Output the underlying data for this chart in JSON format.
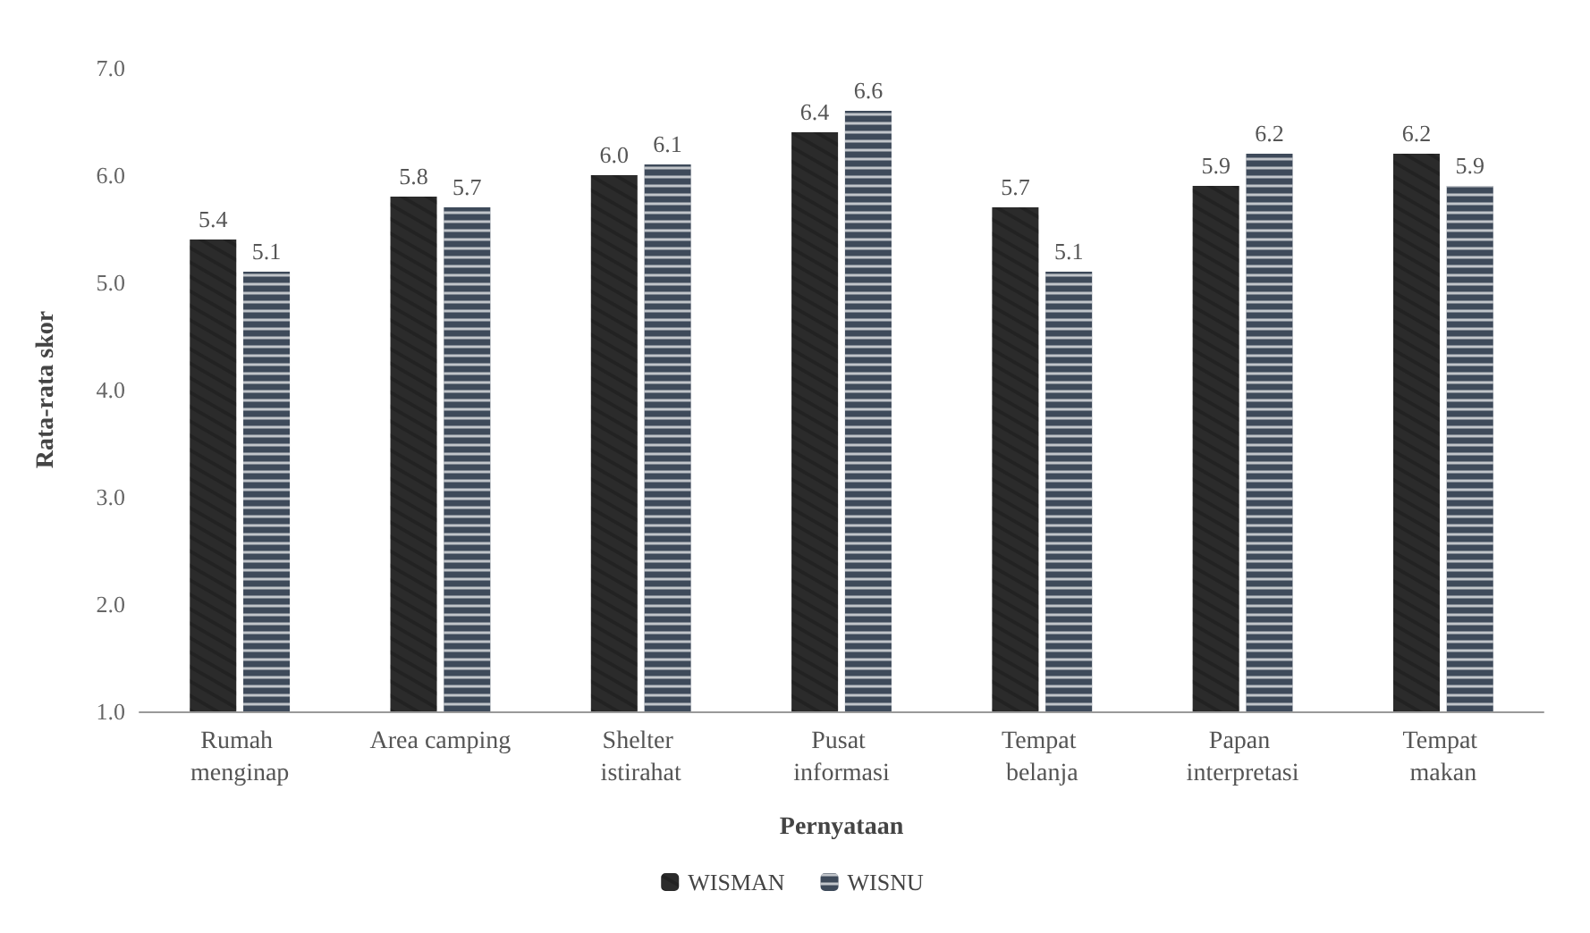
{
  "chart_data": {
    "type": "bar",
    "xlabel": "Pernyataan",
    "ylabel": "Rata-rata skor",
    "categories": [
      "Rumah menginap",
      "Area camping",
      "Shelter istirahat",
      "Pusat informasi",
      "Tempat belanja",
      "Papan interpretasi",
      "Tempat makan"
    ],
    "series": [
      {
        "name": "WISMAN",
        "color": "#2b2b2b",
        "values": [
          5.4,
          5.8,
          6.0,
          6.4,
          5.7,
          5.9,
          6.2
        ],
        "value_labels": [
          "5.4",
          "5.8",
          "6.0",
          "6.4",
          "5.7",
          "5.9",
          "6.2"
        ]
      },
      {
        "name": "WISNU",
        "color": "#3e4a5a",
        "values": [
          5.1,
          5.7,
          6.1,
          6.6,
          5.1,
          6.2,
          5.9
        ],
        "value_labels": [
          "5.1",
          "5.7",
          "6.1",
          "6.6",
          "5.1",
          "6.2",
          "5.9"
        ]
      }
    ],
    "ylim": [
      1,
      7
    ],
    "yticks": [
      {
        "value": 1,
        "label": "1.0"
      },
      {
        "value": 2,
        "label": "2.0"
      },
      {
        "value": 3,
        "label": "3.0"
      },
      {
        "value": 4,
        "label": "4.0"
      },
      {
        "value": 5,
        "label": "5.0"
      },
      {
        "value": 6,
        "label": "6.0"
      },
      {
        "value": 7,
        "label": "7.0"
      }
    ],
    "grid": false,
    "legend": "bottom"
  }
}
